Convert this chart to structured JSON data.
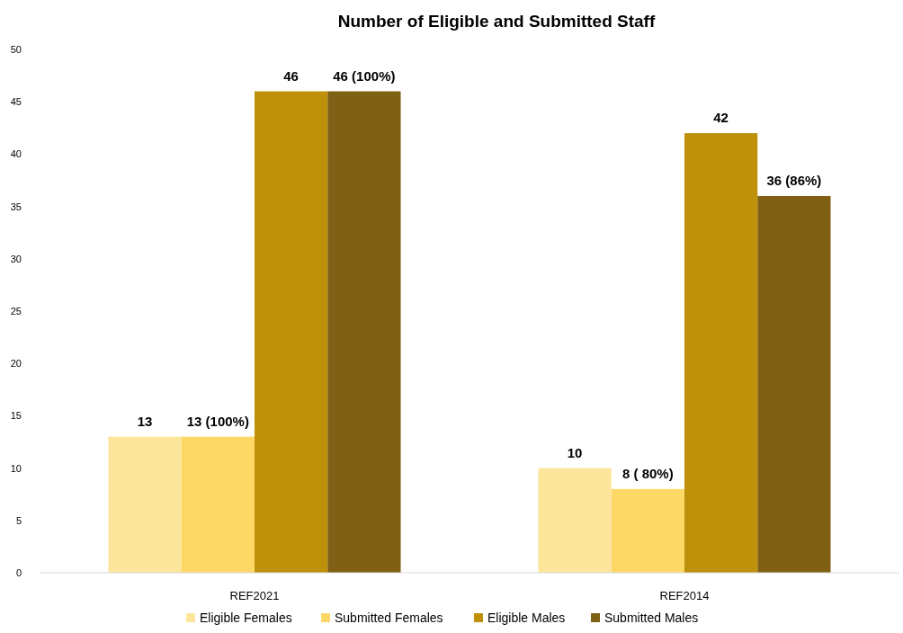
{
  "chart_data": {
    "type": "bar",
    "title": "Number of Eligible and Submitted Staff",
    "categories": [
      "REF2021",
      "REF2014"
    ],
    "series": [
      {
        "name": "Eligible Females",
        "color": "#fde59c",
        "values": [
          13,
          10
        ],
        "value_labels": [
          "13",
          "10"
        ]
      },
      {
        "name": "Submitted Females",
        "color": "#fdd866",
        "values": [
          13,
          8
        ],
        "value_labels": [
          "13 (100%)",
          "8 ( 80%)"
        ]
      },
      {
        "name": "Eligible Males",
        "color": "#bf9009",
        "values": [
          46,
          42
        ],
        "value_labels": [
          "46",
          "42"
        ]
      },
      {
        "name": "Submitted Males",
        "color": "#7f6014",
        "values": [
          46,
          36
        ],
        "value_labels": [
          "46 (100%)",
          "36 (86%)"
        ]
      }
    ],
    "ylim": [
      0,
      50
    ],
    "yticks": [
      0,
      5,
      10,
      15,
      20,
      25,
      30,
      35,
      40,
      45,
      50
    ],
    "grid": false,
    "legend": "bottom"
  }
}
